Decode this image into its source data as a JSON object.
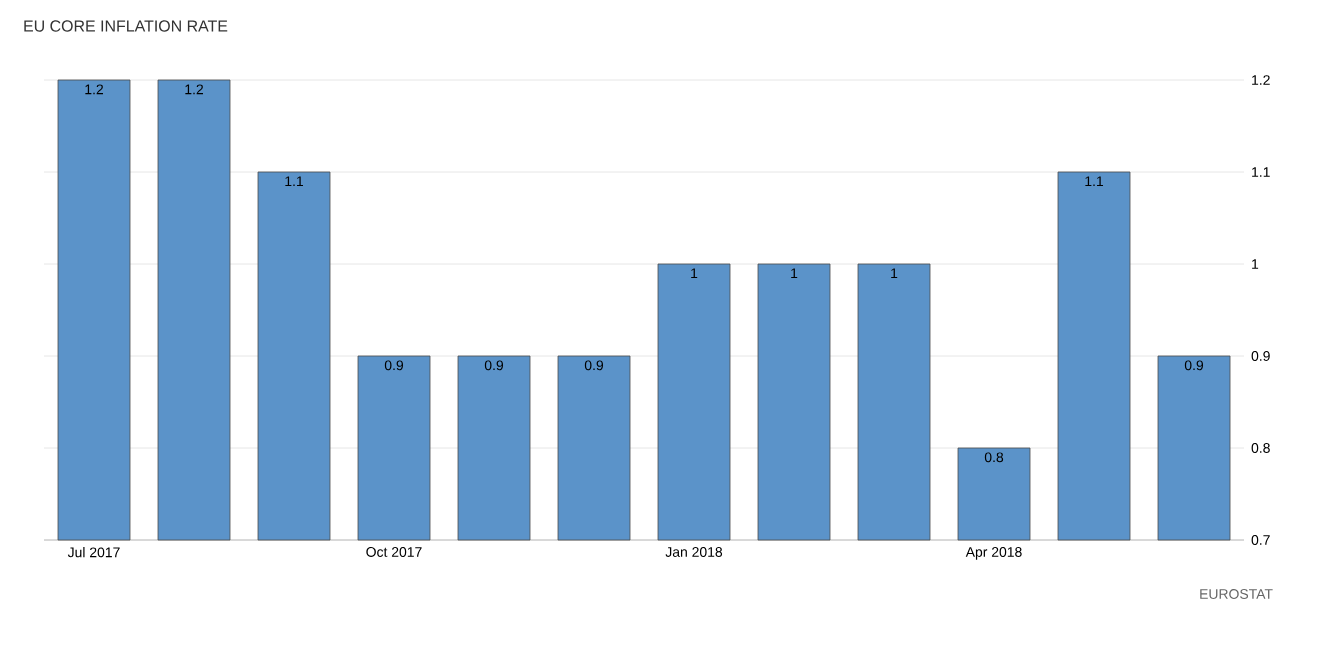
{
  "chart_data": {
    "type": "bar",
    "title": "EU CORE INFLATION RATE",
    "categories": [
      "Jul 2017",
      null,
      null,
      "Oct 2017",
      null,
      null,
      "Jan 2018",
      null,
      null,
      "Apr 2018",
      null,
      null
    ],
    "values": [
      1.2,
      1.2,
      1.1,
      0.9,
      0.9,
      0.9,
      1,
      1,
      1,
      0.8,
      1.1,
      0.9
    ],
    "color": "#5b93c9",
    "ylim": [
      0.7,
      1.2
    ],
    "yticks": [
      0.7,
      0.8,
      0.9,
      1,
      1.1,
      1.2
    ],
    "grid": "y",
    "data_labels": true,
    "annotations": [
      "EUROSTAT"
    ]
  }
}
